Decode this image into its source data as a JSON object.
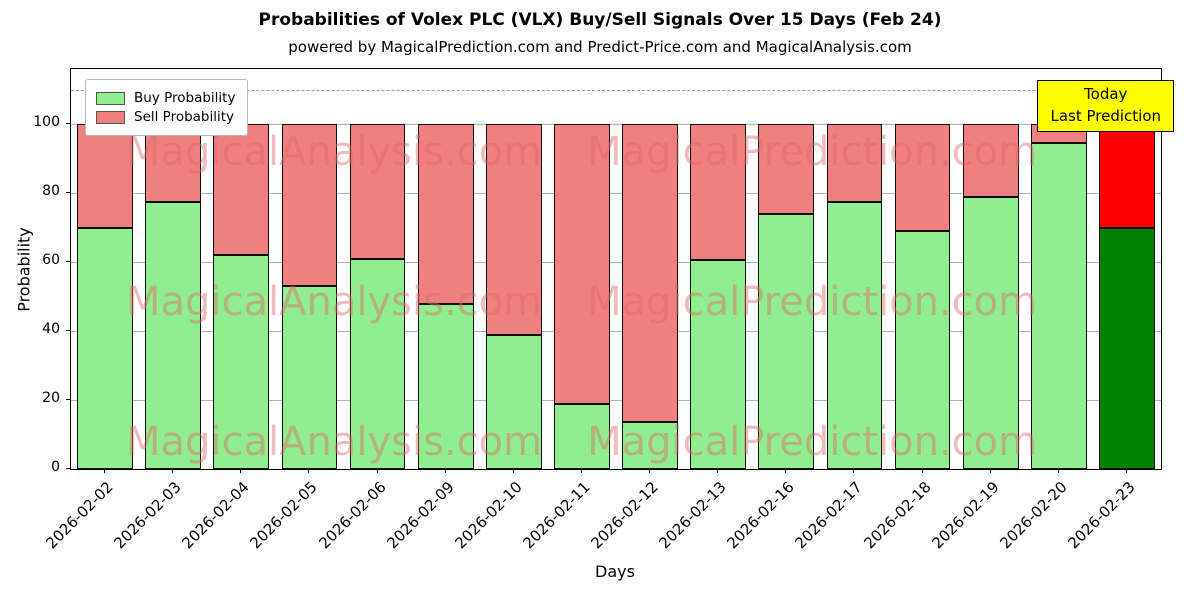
{
  "title": "Probabilities of Volex PLC (VLX) Buy/Sell Signals Over 15 Days (Feb 24)",
  "subtitle": "powered by MagicalPrediction.com and Predict-Price.com and MagicalAnalysis.com",
  "annotation": {
    "lines": {
      "0": "Today",
      "1": "Last Prediction"
    },
    "bg_color": "#ffff00"
  },
  "watermarks": [
    "MagicalAnalysis.com",
    "MagicalPrediction.com"
  ],
  "chart_data": {
    "type": "bar",
    "stacked": true,
    "title": "Probabilities of Volex PLC (VLX) Buy/Sell Signals Over 15 Days (Feb 24)",
    "xlabel": "Days",
    "ylabel": "Probability",
    "categories": [
      "2026-02-02",
      "2026-02-03",
      "2026-02-04",
      "2026-02-05",
      "2026-02-06",
      "2026-02-09",
      "2026-02-10",
      "2026-02-11",
      "2026-02-12",
      "2026-02-13",
      "2026-02-16",
      "2026-02-17",
      "2026-02-18",
      "2026-02-19",
      "2026-02-20",
      "2026-02-23"
    ],
    "series": [
      {
        "name": "Buy Probability",
        "color": "#90ee90",
        "values": [
          70,
          77.5,
          62,
          53,
          61,
          48,
          39,
          19,
          13.5,
          60.5,
          74,
          77.5,
          69,
          79,
          94.5,
          70
        ]
      },
      {
        "name": "Sell Probability",
        "color": "#f08080",
        "values": [
          30,
          22.5,
          38,
          47,
          39,
          52,
          61,
          81,
          86.5,
          39.5,
          26,
          22.5,
          31,
          21,
          5.5,
          30
        ]
      }
    ],
    "last_bar_colors": {
      "buy": "#008000",
      "sell": "#ff0000"
    },
    "yticks": [
      0,
      20,
      40,
      60,
      80,
      100
    ],
    "ylim": [
      0,
      116
    ],
    "dashed_line_y": 110,
    "grid": true,
    "legend_position": "upper left"
  }
}
